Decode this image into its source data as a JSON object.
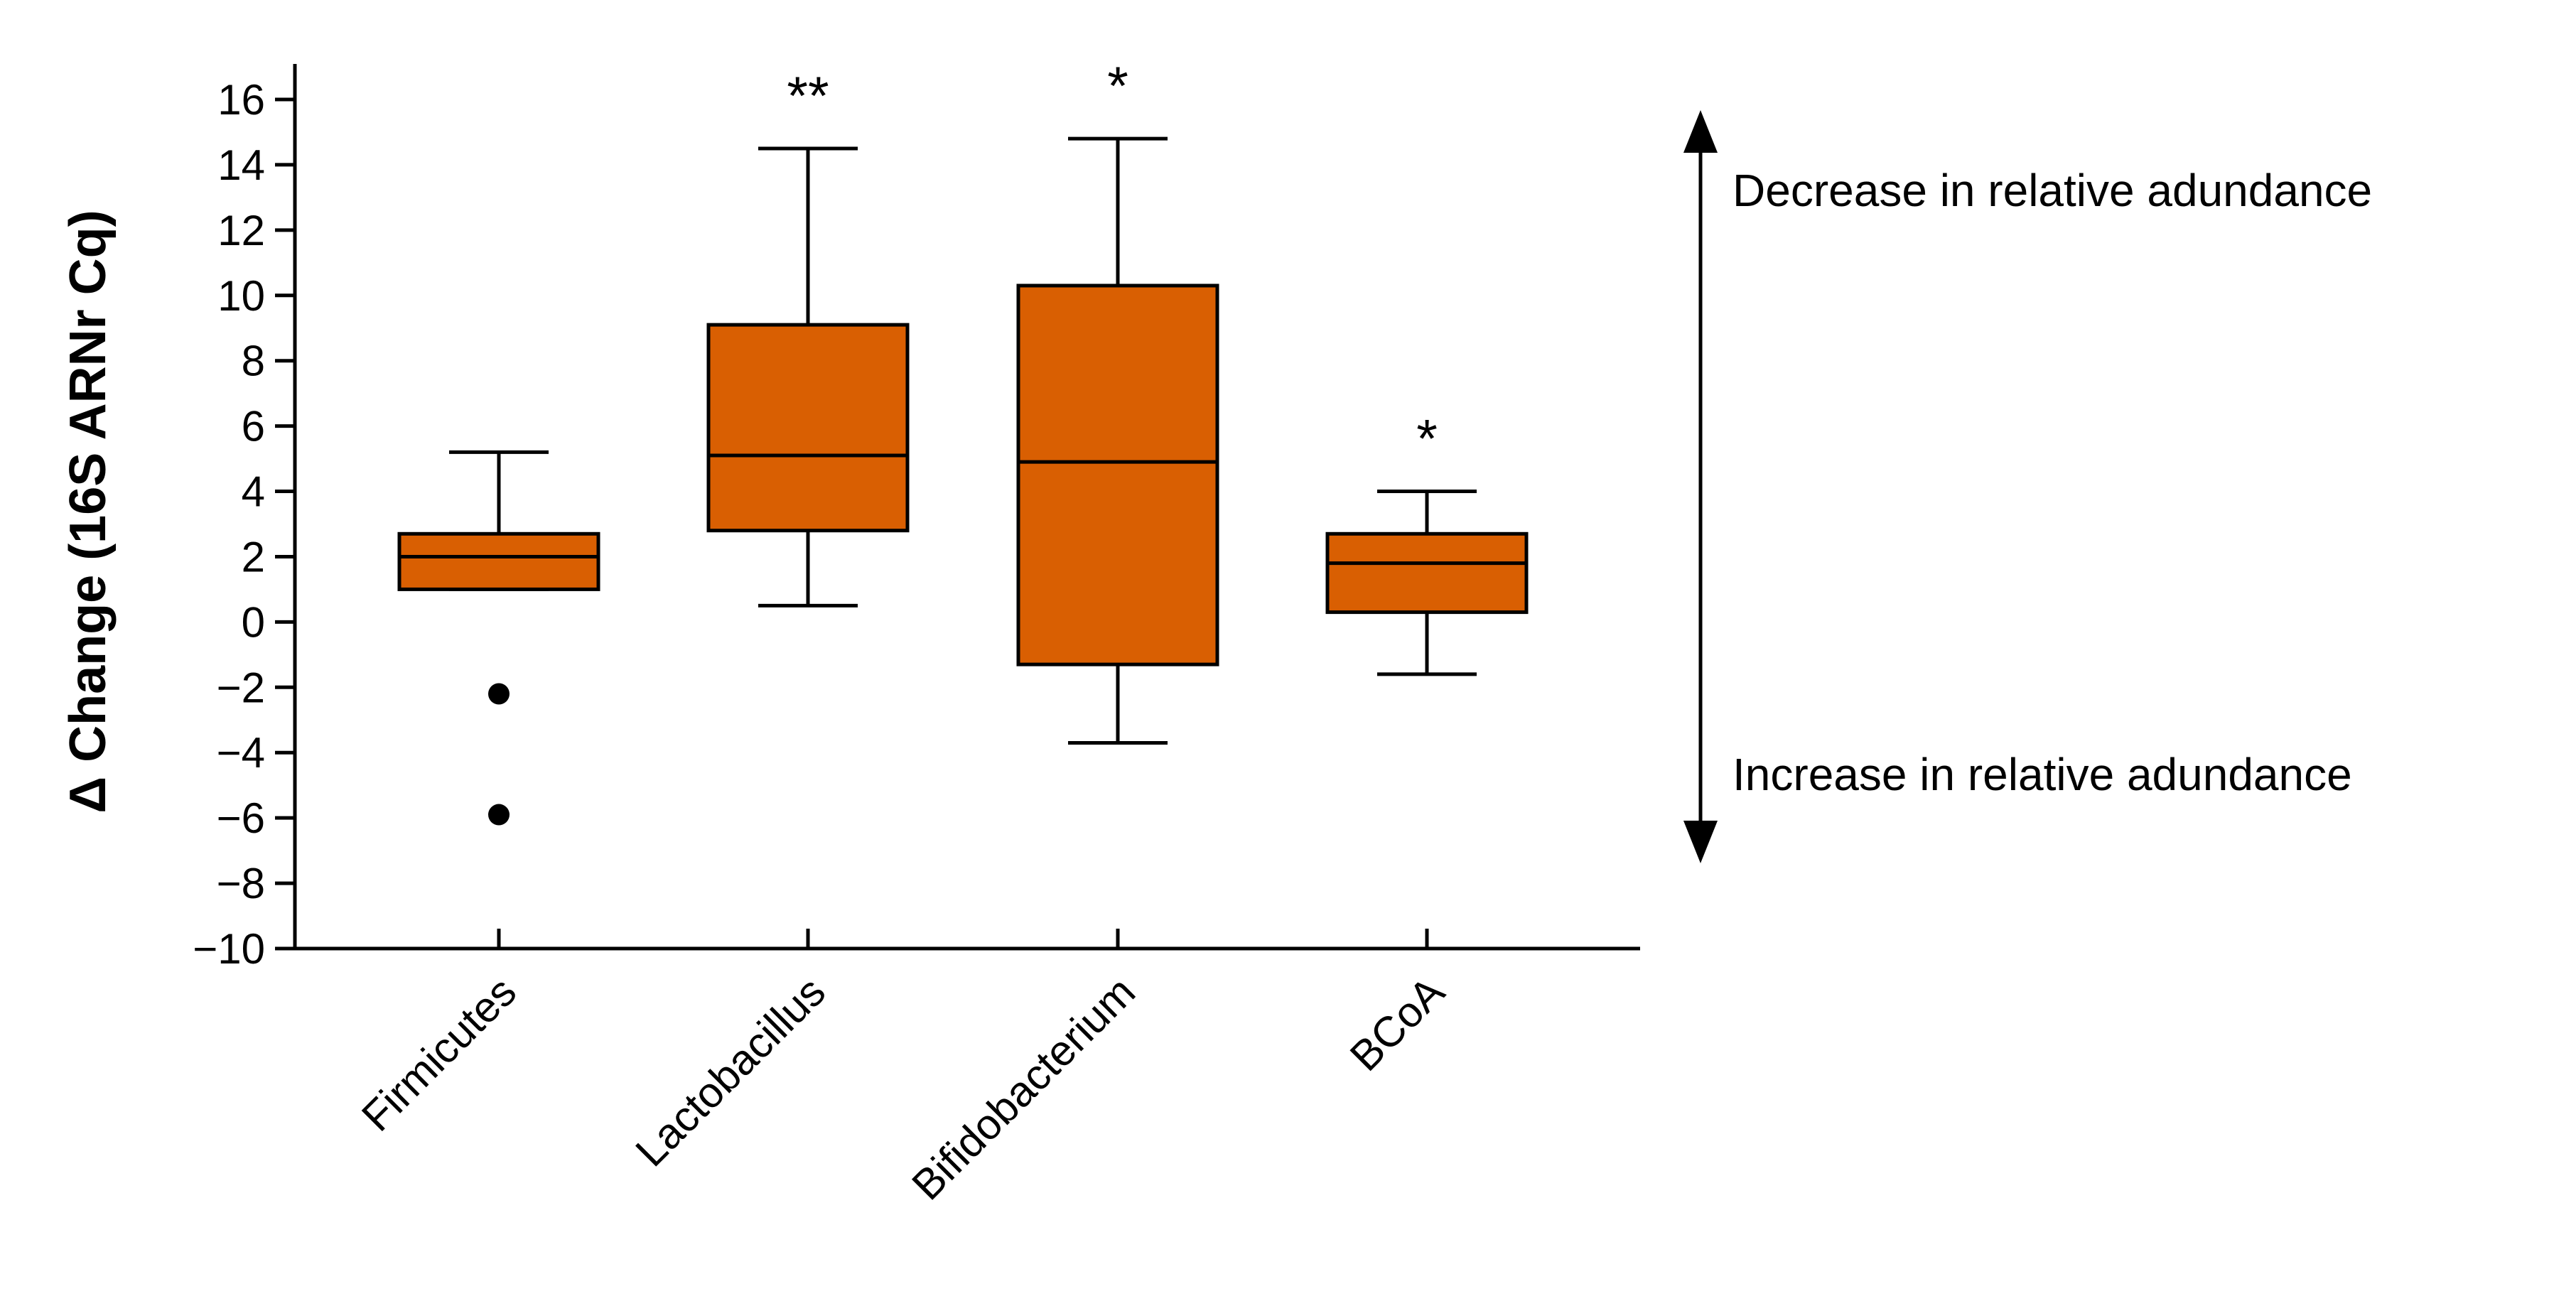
{
  "chart_data": {
    "type": "box",
    "title": "",
    "ylabel": "Δ Change (16S ARNr Cq)",
    "xlabel": "",
    "ylim": [
      -10,
      16
    ],
    "yticks": [
      16,
      14,
      12,
      10,
      8,
      6,
      4,
      2,
      0,
      -2,
      -4,
      -6,
      -8,
      -10
    ],
    "ytick_labels": [
      "16",
      "14",
      "12",
      "10",
      "8",
      "6",
      "4",
      "2",
      "0",
      "−2",
      "−4",
      "−6",
      "−8",
      "−10"
    ],
    "box_color": "#d95f02",
    "categories": [
      "Firmicutes",
      "Lactobacillus",
      "Bifidobacterium",
      "BCoA"
    ],
    "boxes": [
      {
        "name": "Firmicutes",
        "whisker_low": 1.0,
        "q1": 1.0,
        "median": 2.0,
        "q3": 2.7,
        "whisker_high": 5.2,
        "outliers": [
          -2.2,
          -5.9
        ],
        "significance": ""
      },
      {
        "name": "Lactobacillus",
        "whisker_low": 0.5,
        "q1": 2.8,
        "median": 5.1,
        "q3": 9.1,
        "whisker_high": 14.5,
        "outliers": [],
        "significance": "**"
      },
      {
        "name": "Bifidobacterium",
        "whisker_low": -3.7,
        "q1": -1.3,
        "median": 4.9,
        "q3": 10.3,
        "whisker_high": 14.8,
        "outliers": [],
        "significance": "*"
      },
      {
        "name": "BCoA",
        "whisker_low": -1.6,
        "q1": 0.3,
        "median": 1.8,
        "q3": 2.7,
        "whisker_high": 4.0,
        "outliers": [],
        "significance": "*"
      }
    ],
    "annotations": {
      "top": "Decrease in relative adundance",
      "bottom": "Increase in relative adundance"
    }
  }
}
